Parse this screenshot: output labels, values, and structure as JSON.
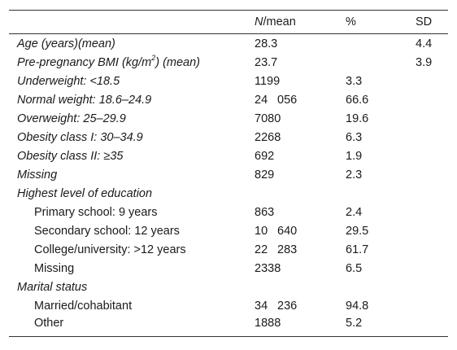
{
  "table": {
    "header": {
      "col_label": "",
      "col_mean_italic": "N",
      "col_mean_rest": "/mean",
      "col_pct": "%",
      "col_sd": "SD"
    },
    "rows": [
      {
        "label": "Age (years)(mean)",
        "italic": true,
        "indent": false,
        "mean": "28.3",
        "pct": "",
        "sd": "4.4"
      },
      {
        "label_pre": "Pre-pregnancy BMI (kg/m",
        "label_sup": "2",
        "label_post": ") (mean)",
        "italic": true,
        "indent": false,
        "mean": "23.7",
        "pct": "",
        "sd": "3.9"
      },
      {
        "label": "Underweight: <18.5",
        "italic": true,
        "indent": false,
        "mean": "1199",
        "pct": "3.3",
        "sd": ""
      },
      {
        "label": "Normal weight: 18.6–24.9",
        "italic": true,
        "indent": false,
        "mean_a": "24",
        "mean_b": "056",
        "pct": "66.6",
        "sd": ""
      },
      {
        "label": "Overweight: 25–29.9",
        "italic": true,
        "indent": false,
        "mean": "7080",
        "pct": "19.6",
        "sd": ""
      },
      {
        "label": "Obesity class I: 30–34.9",
        "italic": true,
        "indent": false,
        "mean": "2268",
        "pct": "6.3",
        "sd": ""
      },
      {
        "label": "Obesity class II: ≥35",
        "italic": true,
        "indent": false,
        "mean": "692",
        "pct": "1.9",
        "sd": ""
      },
      {
        "label": "Missing",
        "italic": true,
        "indent": false,
        "mean": "829",
        "pct": "2.3",
        "sd": ""
      },
      {
        "label": "Highest level of education",
        "italic": true,
        "indent": false,
        "mean": "",
        "pct": "",
        "sd": ""
      },
      {
        "label": "Primary school: 9 years",
        "italic": false,
        "indent": true,
        "mean": "863",
        "pct": "2.4",
        "sd": ""
      },
      {
        "label": "Secondary school: 12 years",
        "italic": false,
        "indent": true,
        "mean_a": "10",
        "mean_b": "640",
        "pct": "29.5",
        "sd": ""
      },
      {
        "label": "College/university: >12 years",
        "italic": false,
        "indent": true,
        "mean_a": "22",
        "mean_b": "283",
        "pct": "61.7",
        "sd": ""
      },
      {
        "label": "Missing",
        "italic": false,
        "indent": true,
        "mean": "2338",
        "pct": "6.5",
        "sd": ""
      },
      {
        "label": "Marital status",
        "italic": true,
        "indent": false,
        "mean": "",
        "pct": "",
        "sd": ""
      },
      {
        "label": "Married/cohabitant",
        "italic": false,
        "indent": true,
        "mean_a": "34",
        "mean_b": "236",
        "pct": "94.8",
        "sd": ""
      },
      {
        "label": "Other",
        "italic": false,
        "indent": true,
        "mean": "1888",
        "pct": "5.2",
        "sd": ""
      }
    ]
  }
}
